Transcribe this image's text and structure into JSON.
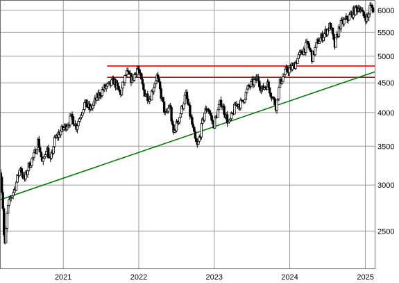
{
  "chart_data": {
    "type": "line",
    "title": "",
    "xlabel": "",
    "ylabel": "",
    "y_scale": "log",
    "ylim": [
      2150,
      6250
    ],
    "xlim": [
      "2020-03-01",
      "2025-02-15"
    ],
    "grid": true,
    "x_ticks": [
      {
        "label": "2021",
        "date": "2021-01-01"
      },
      {
        "label": "2022",
        "date": "2022-01-01"
      },
      {
        "label": "2023",
        "date": "2023-01-01"
      },
      {
        "label": "2024",
        "date": "2024-01-01"
      },
      {
        "label": "2025",
        "date": "2025-01-01"
      }
    ],
    "y_ticks": [
      {
        "label": "6000",
        "value": 6000
      },
      {
        "label": "5500",
        "value": 5500
      },
      {
        "label": "5000",
        "value": 5000
      },
      {
        "label": "4500",
        "value": 4500
      },
      {
        "label": "4000",
        "value": 4000
      },
      {
        "label": "3500",
        "value": 3500
      },
      {
        "label": "3000",
        "value": 3000
      },
      {
        "label": "2500",
        "value": 2500
      }
    ],
    "series": [
      {
        "style": "candlestick",
        "color": "#000000",
        "x": [
          "2020-03-05",
          "2020-03-15",
          "2020-03-23",
          "2020-04-05",
          "2020-04-20",
          "2020-05-10",
          "2020-06-08",
          "2020-06-25",
          "2020-07-20",
          "2020-08-15",
          "2020-09-02",
          "2020-09-23",
          "2020-10-12",
          "2020-10-30",
          "2020-11-20",
          "2020-12-15",
          "2021-01-15",
          "2021-02-12",
          "2021-03-04",
          "2021-04-15",
          "2021-05-12",
          "2021-06-15",
          "2021-07-15",
          "2021-08-15",
          "2021-09-02",
          "2021-10-04",
          "2021-11-02",
          "2021-11-30",
          "2021-12-27",
          "2022-01-27",
          "2022-02-24",
          "2022-03-29",
          "2022-05-12",
          "2022-05-31",
          "2022-06-16",
          "2022-07-20",
          "2022-08-16",
          "2022-09-12",
          "2022-09-30",
          "2022-10-12",
          "2022-11-15",
          "2022-12-01",
          "2022-12-28",
          "2023-02-02",
          "2023-03-13",
          "2023-04-15",
          "2023-05-15",
          "2023-06-15",
          "2023-07-31",
          "2023-08-18",
          "2023-09-15",
          "2023-10-27",
          "2023-11-15",
          "2023-12-15",
          "2024-01-15",
          "2024-02-15",
          "2024-03-28",
          "2024-04-19",
          "2024-05-15",
          "2024-06-15",
          "2024-07-16",
          "2024-08-05",
          "2024-08-30",
          "2024-10-15",
          "2024-11-11",
          "2024-12-06",
          "2024-12-20",
          "2025-01-13",
          "2025-01-24",
          "2025-02-07"
        ],
        "y": [
          3150,
          2750,
          2300,
          2700,
          2850,
          2950,
          3230,
          3050,
          3250,
          3380,
          3580,
          3250,
          3500,
          3280,
          3580,
          3700,
          3800,
          3930,
          3780,
          4150,
          4050,
          4250,
          4400,
          4460,
          4540,
          4300,
          4680,
          4550,
          4790,
          4330,
          4230,
          4630,
          3930,
          4150,
          3670,
          3960,
          4300,
          3880,
          3590,
          3490,
          4000,
          4080,
          3800,
          4180,
          3810,
          4130,
          4150,
          4420,
          4590,
          4370,
          4480,
          4100,
          4500,
          4720,
          4780,
          5000,
          5250,
          4970,
          5300,
          5450,
          5660,
          5190,
          5650,
          5850,
          6000,
          6090,
          5870,
          5830,
          6100,
          6030
        ]
      }
    ],
    "horizontal_lines": [
      {
        "color": "#dd0000",
        "value": 4810,
        "from": "2021-08-01"
      },
      {
        "color": "#dd0000",
        "value": 4600,
        "from": "2021-08-01"
      }
    ],
    "trendline": {
      "color": "#007a00",
      "points": [
        {
          "x": "2020-03-01",
          "y": 2830
        },
        {
          "x": "2025-02-15",
          "y": 4700
        }
      ]
    }
  }
}
